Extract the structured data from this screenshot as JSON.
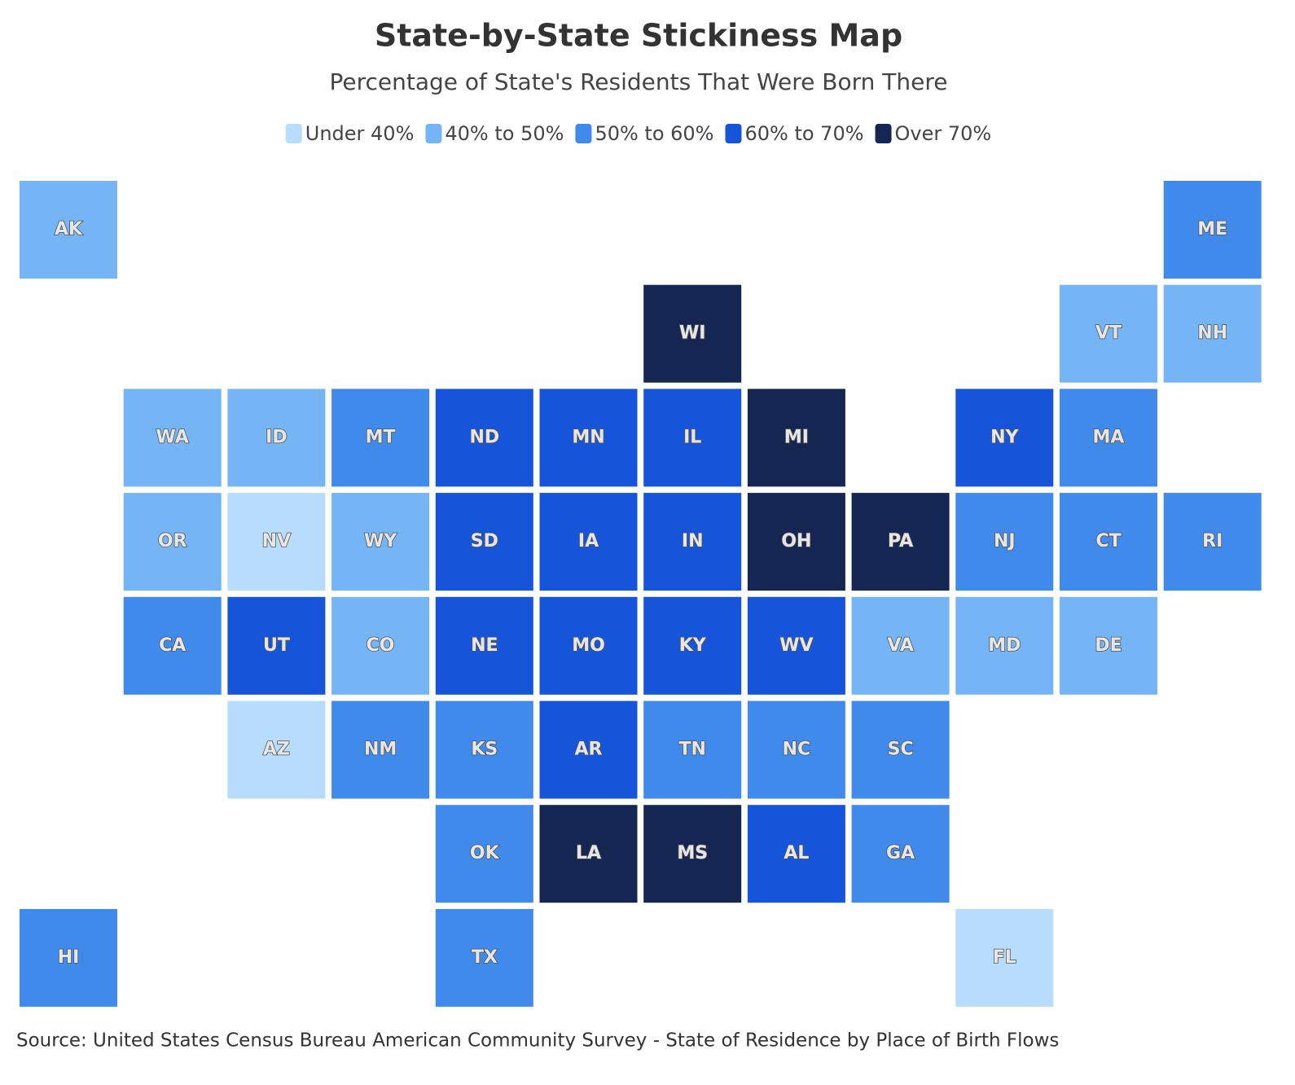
{
  "header": {
    "title": "State-by-State Stickiness Map",
    "subtitle": "Percentage of State's Residents That Were Born There"
  },
  "legend": [
    {
      "label": "Under 40%",
      "color": "#b8dcfb"
    },
    {
      "label": "40% to 50%",
      "color": "#76b5f5"
    },
    {
      "label": "50% to 60%",
      "color": "#3f8aea"
    },
    {
      "label": "60% to 70%",
      "color": "#1654d9"
    },
    {
      "label": "Over 70%",
      "color": "#162652"
    }
  ],
  "states": [
    {
      "abbr": "AK",
      "category": "40% to 50%"
    },
    {
      "abbr": "ME",
      "category": "50% to 60%"
    },
    {
      "abbr": "WI",
      "category": "Over 70%"
    },
    {
      "abbr": "VT",
      "category": "40% to 50%"
    },
    {
      "abbr": "NH",
      "category": "40% to 50%"
    },
    {
      "abbr": "WA",
      "category": "40% to 50%"
    },
    {
      "abbr": "ID",
      "category": "40% to 50%"
    },
    {
      "abbr": "MT",
      "category": "50% to 60%"
    },
    {
      "abbr": "ND",
      "category": "60% to 70%"
    },
    {
      "abbr": "MN",
      "category": "60% to 70%"
    },
    {
      "abbr": "IL",
      "category": "60% to 70%"
    },
    {
      "abbr": "MI",
      "category": "Over 70%"
    },
    {
      "abbr": "NY",
      "category": "60% to 70%"
    },
    {
      "abbr": "MA",
      "category": "50% to 60%"
    },
    {
      "abbr": "OR",
      "category": "40% to 50%"
    },
    {
      "abbr": "NV",
      "category": "Under 40%"
    },
    {
      "abbr": "WY",
      "category": "40% to 50%"
    },
    {
      "abbr": "SD",
      "category": "60% to 70%"
    },
    {
      "abbr": "IA",
      "category": "60% to 70%"
    },
    {
      "abbr": "IN",
      "category": "60% to 70%"
    },
    {
      "abbr": "OH",
      "category": "Over 70%"
    },
    {
      "abbr": "PA",
      "category": "Over 70%"
    },
    {
      "abbr": "NJ",
      "category": "50% to 60%"
    },
    {
      "abbr": "CT",
      "category": "50% to 60%"
    },
    {
      "abbr": "RI",
      "category": "50% to 60%"
    },
    {
      "abbr": "CA",
      "category": "50% to 60%"
    },
    {
      "abbr": "UT",
      "category": "60% to 70%"
    },
    {
      "abbr": "CO",
      "category": "40% to 50%"
    },
    {
      "abbr": "NE",
      "category": "60% to 70%"
    },
    {
      "abbr": "MO",
      "category": "60% to 70%"
    },
    {
      "abbr": "KY",
      "category": "60% to 70%"
    },
    {
      "abbr": "WV",
      "category": "60% to 70%"
    },
    {
      "abbr": "VA",
      "category": "40% to 50%"
    },
    {
      "abbr": "MD",
      "category": "40% to 50%"
    },
    {
      "abbr": "DE",
      "category": "40% to 50%"
    },
    {
      "abbr": "AZ",
      "category": "Under 40%"
    },
    {
      "abbr": "NM",
      "category": "50% to 60%"
    },
    {
      "abbr": "KS",
      "category": "50% to 60%"
    },
    {
      "abbr": "AR",
      "category": "60% to 70%"
    },
    {
      "abbr": "TN",
      "category": "50% to 60%"
    },
    {
      "abbr": "NC",
      "category": "50% to 60%"
    },
    {
      "abbr": "SC",
      "category": "50% to 60%"
    },
    {
      "abbr": "OK",
      "category": "50% to 60%"
    },
    {
      "abbr": "LA",
      "category": "Over 70%"
    },
    {
      "abbr": "MS",
      "category": "Over 70%"
    },
    {
      "abbr": "AL",
      "category": "60% to 70%"
    },
    {
      "abbr": "GA",
      "category": "50% to 60%"
    },
    {
      "abbr": "HI",
      "category": "50% to 60%"
    },
    {
      "abbr": "TX",
      "category": "50% to 60%"
    },
    {
      "abbr": "FL",
      "category": "Under 40%"
    }
  ],
  "footer": {
    "source": "Source: United States Census Bureau American Community Survey - State of Residence by Place of Birth Flows"
  }
}
